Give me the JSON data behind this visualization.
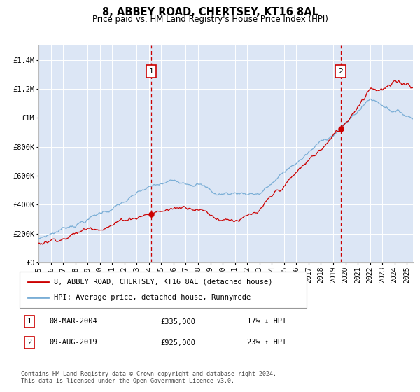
{
  "title": "8, ABBEY ROAD, CHERTSEY, KT16 8AL",
  "subtitle": "Price paid vs. HM Land Registry's House Price Index (HPI)",
  "legend_label_red": "8, ABBEY ROAD, CHERTSEY, KT16 8AL (detached house)",
  "legend_label_blue": "HPI: Average price, detached house, Runnymede",
  "annotation1_date": "08-MAR-2004",
  "annotation1_price": "£335,000",
  "annotation1_hpi": "17% ↓ HPI",
  "annotation2_date": "09-AUG-2019",
  "annotation2_price": "£925,000",
  "annotation2_hpi": "23% ↑ HPI",
  "footnote": "Contains HM Land Registry data © Crown copyright and database right 2024.\nThis data is licensed under the Open Government Licence v3.0.",
  "ylim": [
    0,
    1500000
  ],
  "yticks": [
    0,
    200000,
    400000,
    600000,
    800000,
    1000000,
    1200000,
    1400000
  ],
  "ytick_labels": [
    "£0",
    "£200K",
    "£400K",
    "£600K",
    "£800K",
    "£1M",
    "£1.2M",
    "£1.4M"
  ],
  "background_color": "#dce6f5",
  "red_color": "#cc0000",
  "blue_color": "#7aaed6",
  "dashed_color": "#cc0000",
  "sale1_year": 2004.18,
  "sale1_price": 335000,
  "sale2_year": 2019.6,
  "sale2_price": 925000,
  "xmin": 1995.0,
  "xmax": 2025.5
}
